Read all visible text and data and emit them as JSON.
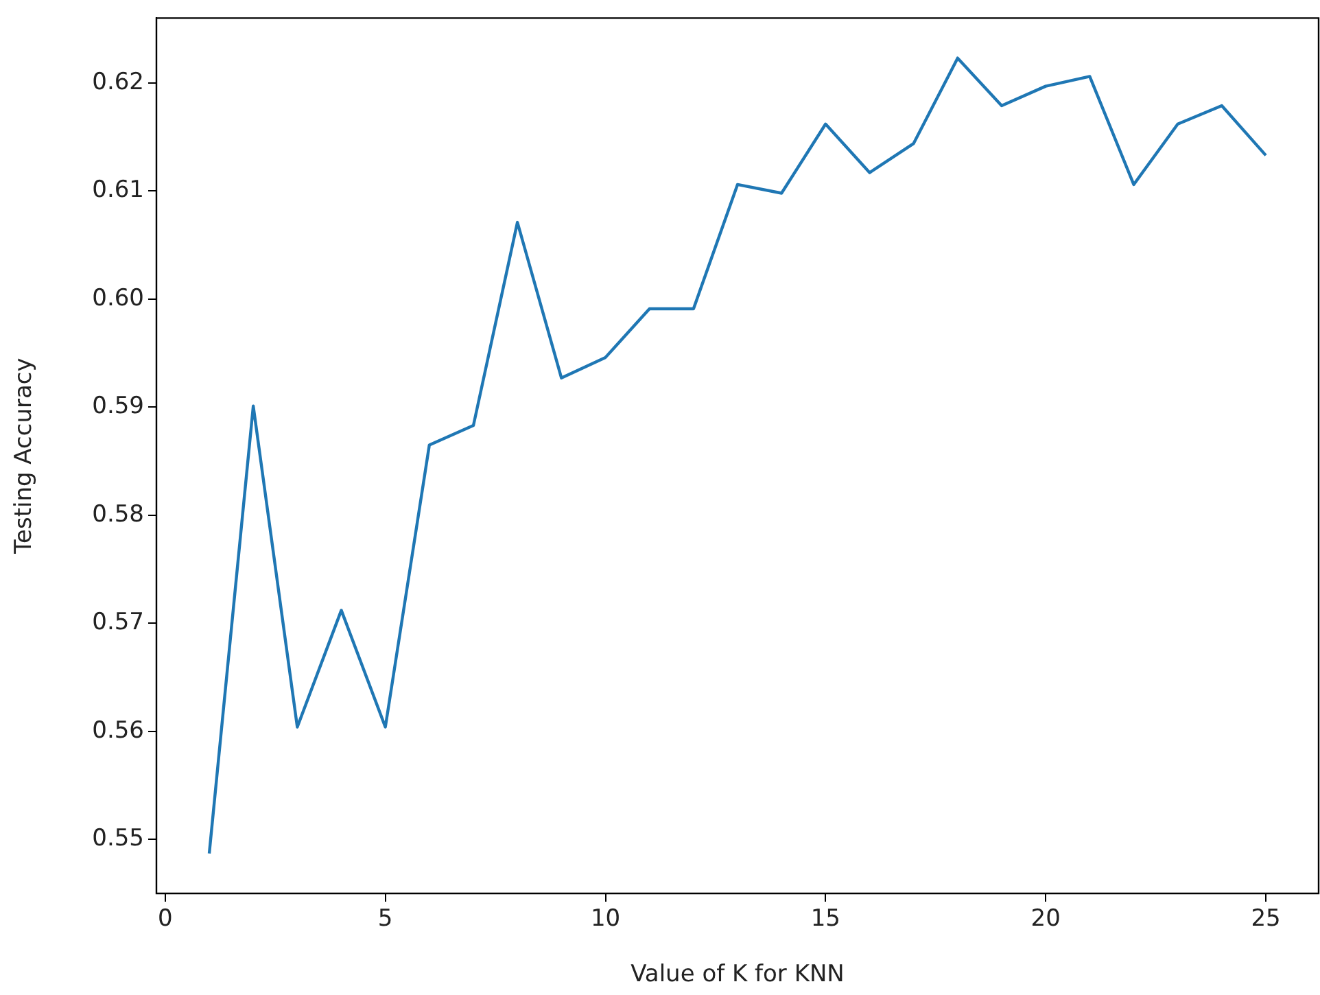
{
  "chart_data": {
    "type": "line",
    "xlabel": "Value of K for KNN",
    "ylabel": "Testing Accuracy",
    "x": [
      1,
      2,
      3,
      4,
      5,
      6,
      7,
      8,
      9,
      10,
      11,
      12,
      13,
      14,
      15,
      16,
      17,
      18,
      19,
      20,
      21,
      22,
      23,
      24,
      25
    ],
    "series": [
      {
        "color": "#1f77b4",
        "values": [
          0.5487,
          0.5901,
          0.5604,
          0.5712,
          0.5604,
          0.5865,
          0.5883,
          0.6071,
          0.5927,
          0.5946,
          0.5991,
          0.5991,
          0.6106,
          0.6098,
          0.6162,
          0.6117,
          0.6144,
          0.6223,
          0.6179,
          0.6197,
          0.6206,
          0.6106,
          0.6162,
          0.6179,
          0.6133
        ]
      }
    ],
    "xlim": [
      -0.2,
      26.2
    ],
    "ylim": [
      0.545,
      0.626
    ],
    "xticks": [
      0,
      5,
      10,
      15,
      20,
      25
    ],
    "yticks": [
      {
        "value": 0.55,
        "label": "0.55"
      },
      {
        "value": 0.56,
        "label": "0.56"
      },
      {
        "value": 0.57,
        "label": "0.57"
      },
      {
        "value": 0.58,
        "label": "0.58"
      },
      {
        "value": 0.59,
        "label": "0.59"
      },
      {
        "value": 0.6,
        "label": "0.60"
      },
      {
        "value": 0.61,
        "label": "0.61"
      },
      {
        "value": 0.62,
        "label": "0.62"
      }
    ],
    "grid": false,
    "legend": false,
    "marker": "none",
    "line_style": "solid"
  }
}
